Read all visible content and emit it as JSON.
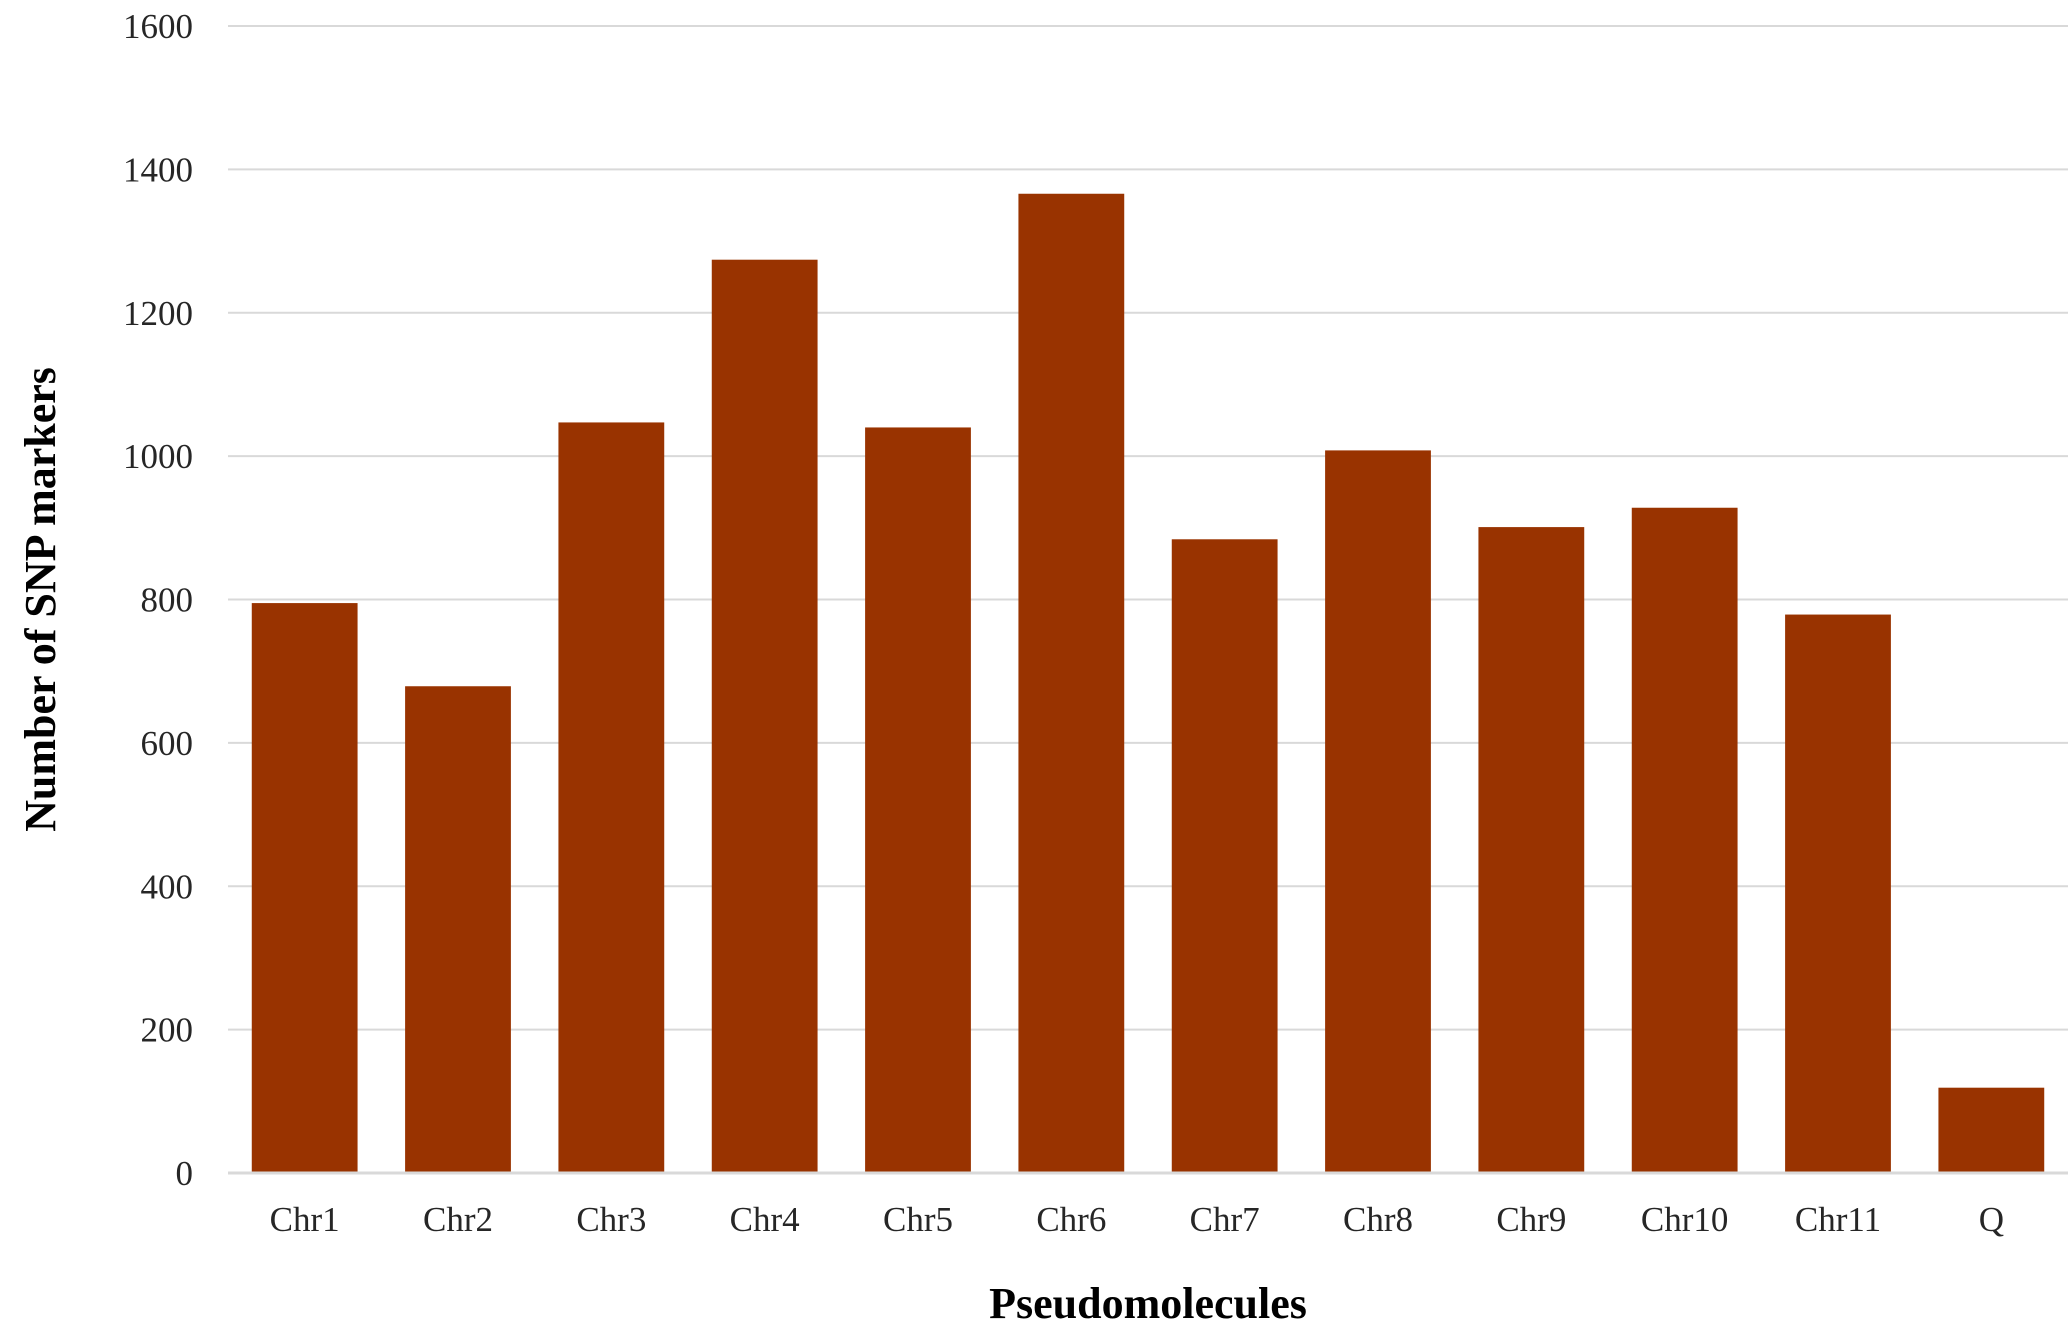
{
  "chart_data": {
    "type": "bar",
    "title": "",
    "xlabel": "Pseudomolecules",
    "ylabel": "Number of SNP markers",
    "categories": [
      "Chr1",
      "Chr2",
      "Chr3",
      "Chr4",
      "Chr5",
      "Chr6",
      "Chr7",
      "Chr8",
      "Chr9",
      "Chr10",
      "Chr11",
      "Q"
    ],
    "values": [
      795,
      679,
      1047,
      1274,
      1040,
      1366,
      884,
      1008,
      901,
      928,
      779,
      119
    ],
    "ylim": [
      0,
      1600
    ],
    "yticks": [
      "0",
      "200",
      "400",
      "600",
      "800",
      "1000",
      "1200",
      "1400",
      "1600"
    ],
    "grid": true,
    "legend": "none",
    "bar_color": "#993300",
    "grid_color": "#d9d9d9"
  }
}
